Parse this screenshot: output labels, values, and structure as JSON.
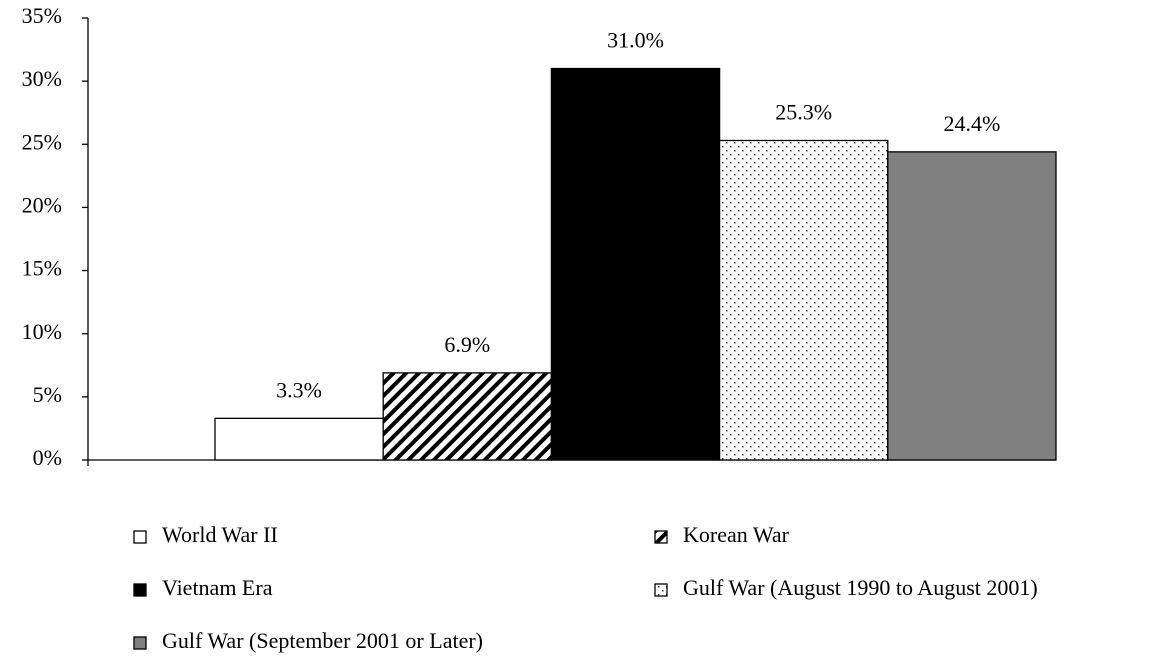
{
  "chart_data": {
    "type": "bar",
    "series": [
      {
        "name": "World War II",
        "color": "#ffffff",
        "pattern": "solid",
        "values": [
          3.3
        ],
        "value_labels": [
          "3.3%"
        ]
      },
      {
        "name": "Korean War",
        "color": "#000000",
        "pattern": "hatch",
        "values": [
          6.9
        ],
        "value_labels": [
          "6.9%"
        ]
      },
      {
        "name": "Vietnam Era",
        "color": "#000000",
        "pattern": "solid",
        "values": [
          31.0
        ],
        "value_labels": [
          "31.0%"
        ]
      },
      {
        "name": "Gulf War (August 1990 to August 2001)",
        "color": "#000000",
        "pattern": "dots",
        "values": [
          25.3
        ],
        "value_labels": [
          "25.3%"
        ]
      },
      {
        "name": "Gulf War (September 2001 or Later)",
        "color": "#808080",
        "pattern": "solid",
        "values": [
          24.4
        ],
        "value_labels": [
          "24.4%"
        ]
      }
    ],
    "ylim": [
      0,
      35
    ],
    "yticks": [
      {
        "value": 0,
        "label": "0%"
      },
      {
        "value": 5,
        "label": "5%"
      },
      {
        "value": 10,
        "label": "10%"
      },
      {
        "value": 15,
        "label": "15%"
      },
      {
        "value": 20,
        "label": "20%"
      },
      {
        "value": 25,
        "label": "25%"
      },
      {
        "value": 30,
        "label": "30%"
      },
      {
        "value": 35,
        "label": "35%"
      }
    ],
    "grid": false,
    "legend": "bottom"
  }
}
